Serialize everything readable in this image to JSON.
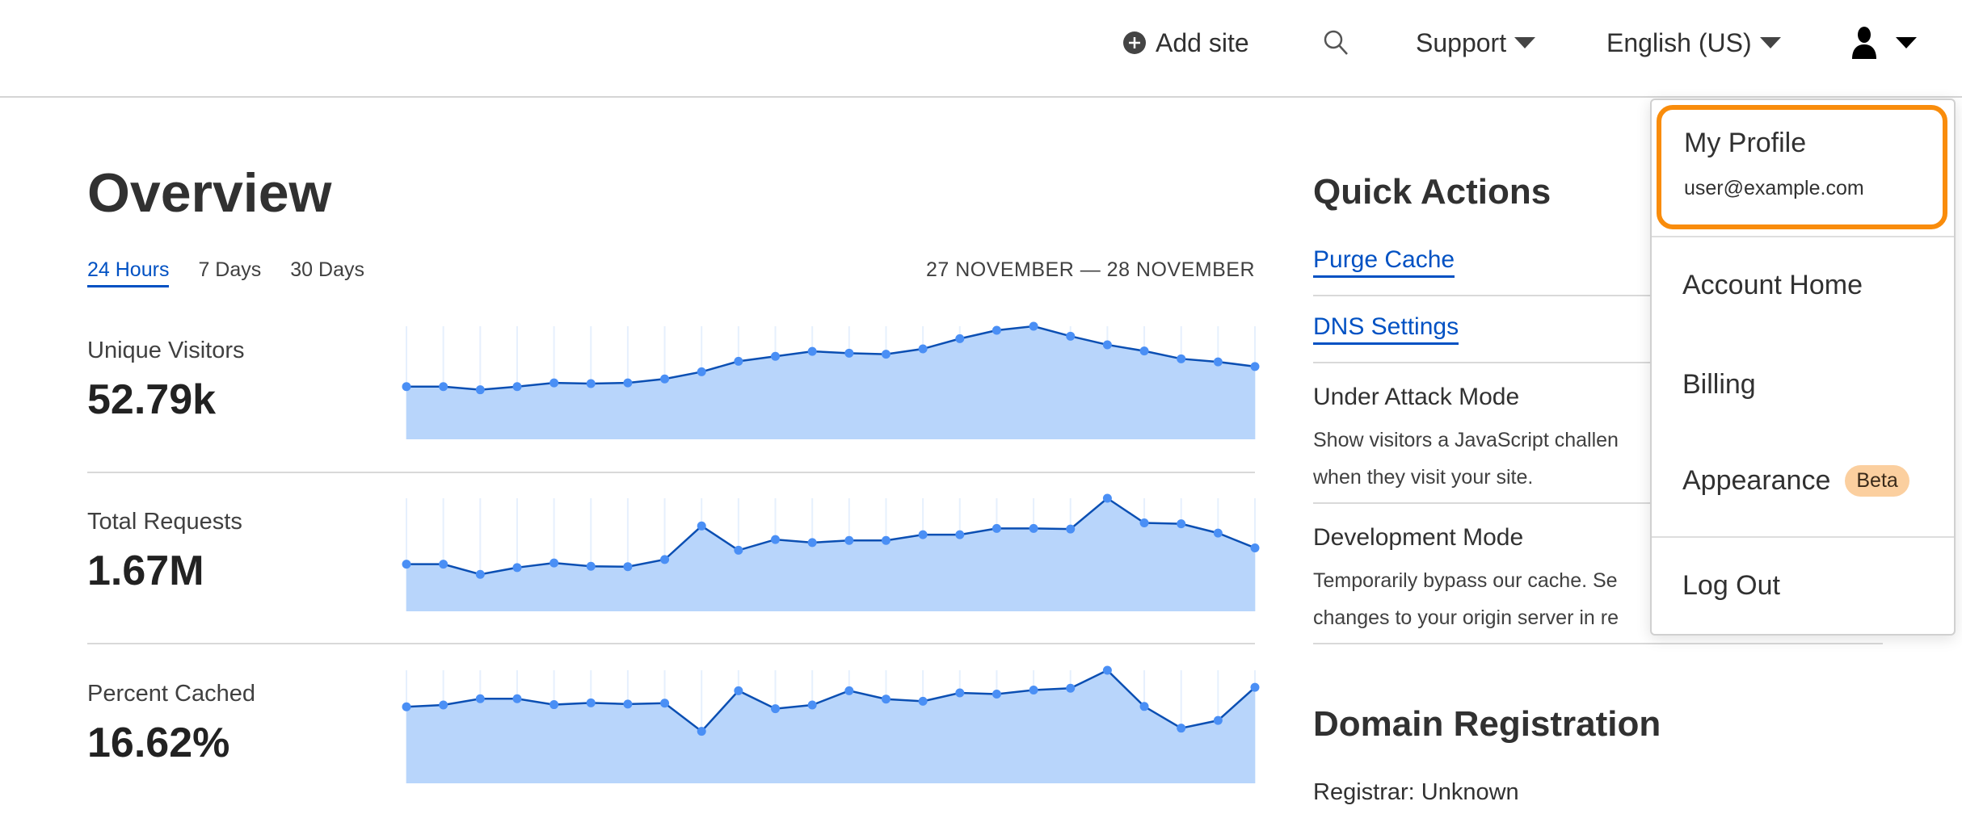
{
  "header": {
    "add_site": "Add site",
    "support": "Support",
    "language": "English (US)",
    "icons": [
      "plus-circle-icon",
      "search-icon",
      "caret-down-icon",
      "user-icon"
    ]
  },
  "overview": {
    "title": "Overview",
    "tabs": [
      {
        "label": "24 Hours",
        "active": true
      },
      {
        "label": "7 Days"
      },
      {
        "label": "30 Days"
      }
    ],
    "date_range": "27 NOVEMBER — 28 NOVEMBER",
    "metrics": [
      {
        "label": "Unique Visitors",
        "value": "52.79k"
      },
      {
        "label": "Total Requests",
        "value": "1.67M"
      },
      {
        "label": "Percent Cached",
        "value": "16.62%"
      }
    ]
  },
  "chart_data": [
    {
      "type": "area",
      "series": [
        {
          "values": [
            46.6,
            46.6,
            43.8,
            46.6,
            49.9,
            49.3,
            49.9,
            53.4,
            59.7,
            69,
            73.4,
            77.8,
            76.2,
            75.3,
            80,
            89,
            96.4,
            100,
            91.2,
            83.6,
            78.1,
            71.2,
            68.5,
            64.4
          ]
        }
      ],
      "ylim": [
        0,
        100
      ],
      "grid": "vertical",
      "line_color": "#0b4fb3",
      "fill_color": "#b8d5fb",
      "point_color": "#4a8ff5"
    },
    {
      "type": "area",
      "series": [
        {
          "values": [
            41.7,
            41.7,
            32.7,
            38.7,
            42.8,
            39.8,
            39.5,
            45.8,
            75.5,
            54,
            63.5,
            60.8,
            62.7,
            62.7,
            67.8,
            67.8,
            73.3,
            73.3,
            72.8,
            100,
            78.2,
            77.4,
            69.2,
            56.1
          ]
        }
      ],
      "ylim": [
        0,
        100
      ],
      "grid": "vertical",
      "line_color": "#0b4fb3",
      "fill_color": "#b8d5fb",
      "point_color": "#4a8ff5"
    },
    {
      "type": "area",
      "series": [
        {
          "values": [
            67.7,
            69.3,
            74.8,
            74.8,
            69.6,
            71.2,
            70.1,
            70.9,
            46,
            81.9,
            66,
            69.3,
            81.9,
            74.5,
            72.6,
            80,
            78.9,
            82.5,
            84.1,
            100,
            68,
            48.8,
            55.6,
            84.9
          ]
        }
      ],
      "ylim": [
        0,
        100
      ],
      "grid": "vertical",
      "line_color": "#0b4fb3",
      "fill_color": "#b8d5fb",
      "point_color": "#4a8ff5"
    }
  ],
  "quick_actions": {
    "title": "Quick Actions",
    "purge_cache": "Purge Cache",
    "dns_settings": "DNS Settings",
    "under_attack_title": "Under Attack Mode",
    "under_attack_desc_1": "Show visitors a JavaScript challen",
    "under_attack_desc_2": "when they visit your site.",
    "dev_mode_title": "Development Mode",
    "dev_mode_desc_1": "Temporarily bypass our cache. Se",
    "dev_mode_desc_2": "changes to your origin server in re"
  },
  "domain_registration": {
    "title": "Domain Registration",
    "registrar": "Registrar: Unknown"
  },
  "user_menu": {
    "profile_label": "My Profile",
    "email": "user@example.com",
    "account_home": "Account Home",
    "billing": "Billing",
    "appearance": "Appearance",
    "beta_badge": "Beta",
    "log_out": "Log Out",
    "highlight_color": "#f98c0b"
  }
}
